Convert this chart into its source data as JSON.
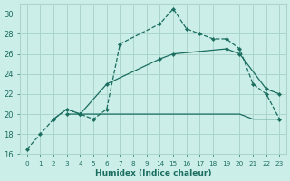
{
  "xlabel": "Humidex (Indice chaleur)",
  "bg_color": "#cceee8",
  "grid_color": "#aad4cc",
  "line_color": "#1a6e60",
  "x_labels": [
    "0",
    "1",
    "2",
    "3",
    "4",
    "5",
    "6",
    "7",
    "8",
    "9",
    "14",
    "15",
    "16",
    "17",
    "18",
    "19",
    "20",
    "21",
    "22",
    "23"
  ],
  "ylim": [
    16,
    31
  ],
  "yticks": [
    16,
    18,
    20,
    22,
    24,
    26,
    28,
    30
  ],
  "line1": {
    "xi": [
      0,
      1,
      2,
      3,
      4,
      5,
      6,
      7,
      10,
      11,
      12,
      13,
      14,
      15,
      16,
      17,
      18,
      19
    ],
    "y": [
      16.5,
      18,
      19.5,
      20.5,
      20.0,
      19.5,
      20.5,
      27.0,
      29.0,
      30.5,
      28.5,
      28.0,
      27.5,
      27.5,
      26.5,
      23.0,
      22.0,
      19.5
    ]
  },
  "line2": {
    "xi": [
      3,
      4,
      6,
      10,
      11,
      15,
      16,
      18,
      19
    ],
    "y": [
      20.0,
      20.0,
      23.0,
      25.5,
      26.0,
      26.5,
      26.0,
      22.5,
      22.0
    ]
  },
  "line3": {
    "xi": [
      2,
      3,
      4,
      5,
      6,
      10,
      11,
      12,
      15,
      16,
      17,
      18,
      19
    ],
    "y": [
      19.5,
      20.5,
      20.0,
      20.0,
      20.0,
      20.0,
      20.0,
      20.0,
      20.0,
      20.0,
      19.5,
      19.5,
      19.5
    ]
  }
}
